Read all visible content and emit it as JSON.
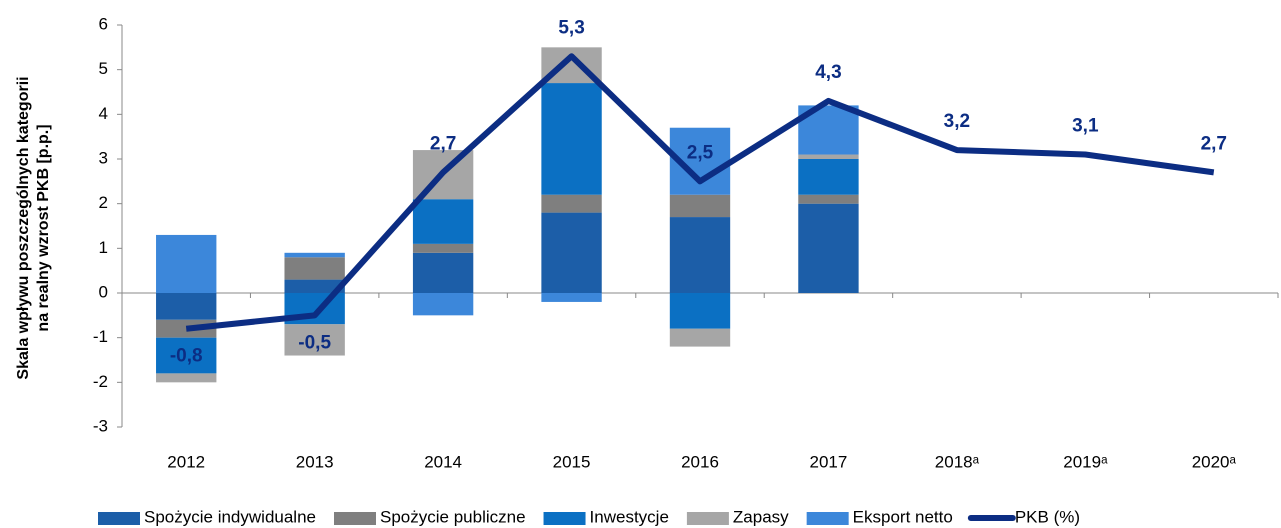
{
  "chart_data": {
    "type": "bar",
    "ylabel": [
      "Skala wpływu poszczególnych kategorii",
      "na realny wzrost PKB [p.p.]"
    ],
    "categories": [
      "2012",
      "2013",
      "2014",
      "2015",
      "2016",
      "2017",
      "2018ᵃ",
      "2019ᵃ",
      "2020ᵃ"
    ],
    "ylim": [
      -3,
      6
    ],
    "yticks": [
      -3,
      -2,
      -1,
      0,
      1,
      2,
      3,
      4,
      5,
      6
    ],
    "grid": false,
    "legend": "bottom",
    "series": [
      {
        "name": "Spożycie indywidualne",
        "type": "bar",
        "color": "#1c5ea8",
        "values": [
          -0.6,
          0.3,
          0.9,
          1.8,
          1.7,
          2.0,
          null,
          null,
          null
        ]
      },
      {
        "name": "Spożycie publiczne",
        "type": "bar",
        "color": "#7f7f7f",
        "values": [
          -0.4,
          0.5,
          0.2,
          0.4,
          0.5,
          0.2,
          null,
          null,
          null
        ]
      },
      {
        "name": "Inwestycje",
        "type": "bar",
        "color": "#0b70c3",
        "values": [
          -0.8,
          -0.7,
          1.0,
          2.5,
          -0.8,
          0.8,
          null,
          null,
          null
        ]
      },
      {
        "name": "Zapasy",
        "type": "bar",
        "color": "#a6a6a6",
        "values": [
          -0.2,
          -0.7,
          1.1,
          0.8,
          -0.4,
          0.1,
          null,
          null,
          null
        ]
      },
      {
        "name": "Eksport netto",
        "type": "bar",
        "color": "#3c87da",
        "values": [
          1.3,
          0.1,
          -0.5,
          -0.2,
          1.5,
          1.1,
          null,
          null,
          null
        ]
      },
      {
        "name": "PKB (%)",
        "type": "line",
        "color": "#0c2d83",
        "values": [
          -0.8,
          -0.5,
          2.7,
          5.3,
          2.5,
          4.3,
          3.2,
          3.1,
          2.7
        ],
        "value_labels": [
          "-0,8",
          "-0,5",
          "2,7",
          "5,3",
          "2,5",
          "4,3",
          "3,2",
          "3,1",
          "2,7"
        ]
      }
    ]
  }
}
